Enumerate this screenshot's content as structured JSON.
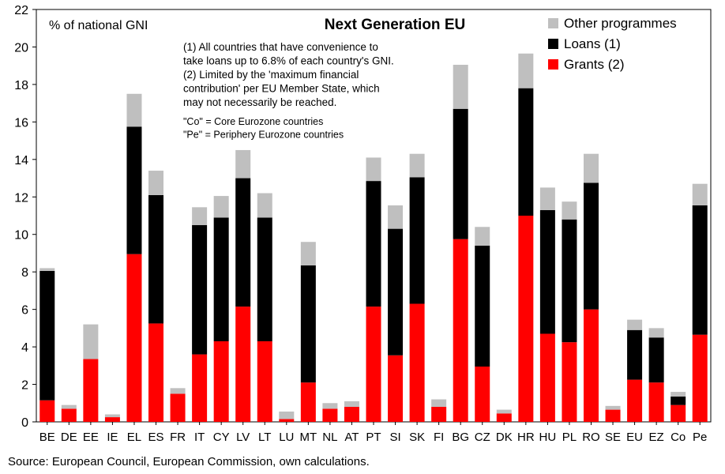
{
  "chart_data": {
    "type": "bar",
    "stacked": true,
    "title": "Next Generation EU",
    "ylabel": "% of national GNI",
    "ylim": [
      0,
      22
    ],
    "yticks": [
      0,
      2,
      4,
      6,
      8,
      10,
      12,
      14,
      16,
      18,
      20,
      22
    ],
    "grid": false,
    "categories": [
      "BE",
      "DE",
      "EE",
      "IE",
      "EL",
      "ES",
      "FR",
      "IT",
      "CY",
      "LV",
      "LT",
      "LU",
      "MT",
      "NL",
      "AT",
      "PT",
      "SI",
      "SK",
      "FI",
      "BG",
      "CZ",
      "DK",
      "HR",
      "HU",
      "PL",
      "RO",
      "SE",
      "EU",
      "EZ",
      "Co",
      "Pe"
    ],
    "series": [
      {
        "name": "Grants (2)",
        "color": "#ff0000",
        "values": [
          1.15,
          0.7,
          3.35,
          0.25,
          8.95,
          5.25,
          1.5,
          3.6,
          4.3,
          6.15,
          4.3,
          0.15,
          2.1,
          0.7,
          0.8,
          6.15,
          3.55,
          6.3,
          0.8,
          9.75,
          2.95,
          0.45,
          11.0,
          4.7,
          4.25,
          6.0,
          0.65,
          2.25,
          2.1,
          0.9,
          4.65
        ]
      },
      {
        "name": "Loans (1)",
        "color": "#000000",
        "values": [
          6.9,
          0.0,
          0.0,
          0.0,
          6.8,
          6.85,
          0.0,
          6.9,
          6.6,
          6.85,
          6.6,
          0.0,
          6.25,
          0.0,
          0.0,
          6.7,
          6.75,
          6.75,
          0.0,
          6.95,
          6.45,
          0.0,
          6.8,
          6.6,
          6.55,
          6.75,
          0.0,
          2.65,
          2.4,
          0.45,
          6.9
        ]
      },
      {
        "name": "Other programmes",
        "color": "#bfbfbf",
        "values": [
          0.15,
          0.2,
          1.85,
          0.15,
          1.75,
          1.3,
          0.3,
          0.95,
          1.15,
          1.5,
          1.3,
          0.4,
          1.25,
          0.3,
          0.3,
          1.25,
          1.25,
          1.25,
          0.4,
          2.35,
          1.0,
          0.2,
          1.85,
          1.2,
          0.95,
          1.55,
          0.2,
          0.55,
          0.5,
          0.25,
          1.15
        ]
      }
    ],
    "legend": {
      "position": "top-right",
      "order": [
        "Other programmes",
        "Loans (1)",
        "Grants (2)"
      ]
    },
    "notes": [
      "(1) All countries that have convenience to",
      "take loans up to 6.8% of each country's GNI.",
      "(2) Limited by the 'maximum financial",
      "contribution' per EU Member State, which",
      "may not necessarily be reached."
    ],
    "abbreviations": [
      "\"Co\" = Core Eurozone countries",
      "\"Pe\" = Periphery Eurozone countries"
    ]
  },
  "source": "Source: European Council, European Commission, own calculations."
}
